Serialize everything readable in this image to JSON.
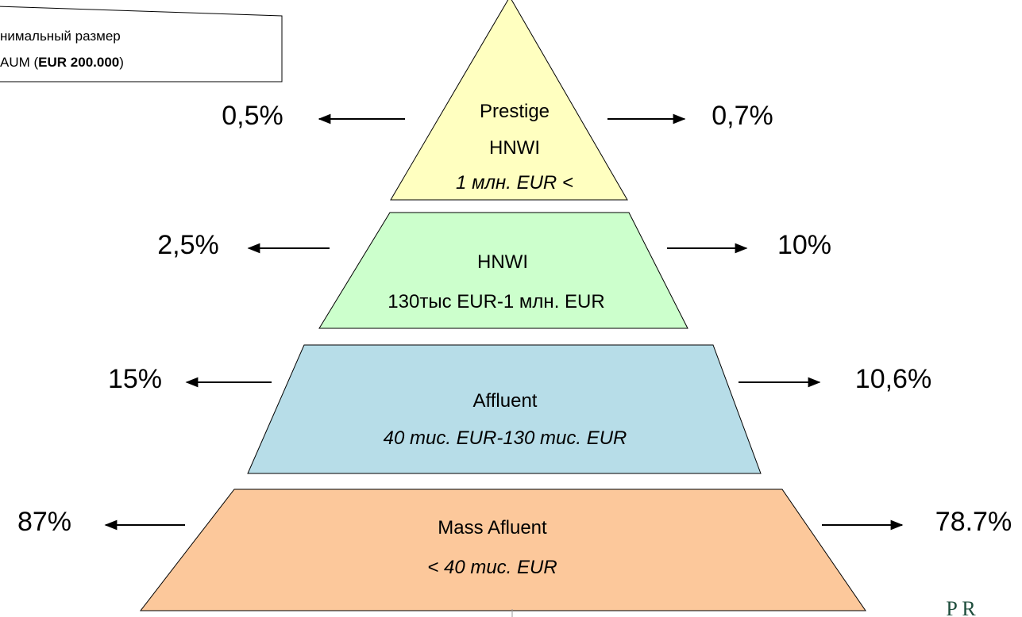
{
  "callout": {
    "line1": "нимальный размер",
    "line2_start": "AUM (",
    "line2_bold": "EUR 200.000",
    "line2_end": ")"
  },
  "levels": [
    {
      "lines": [
        "Prestige",
        "HNWI",
        "1 млн. EUR <"
      ],
      "left": "0,5%",
      "right": "0,7%"
    },
    {
      "lines": [
        "HNWI",
        "130тыс EUR-1 млн. EUR"
      ],
      "left": "2,5%",
      "right": "10%"
    },
    {
      "lines": [
        "Affluent",
        "40 тис. EUR-130 тис. EUR"
      ],
      "left": "15%",
      "right": "10,6%"
    },
    {
      "lines": [
        "Mass Afluent",
        "< 40 тис. EUR"
      ],
      "left": "87%",
      "right": "78.7%"
    }
  ],
  "logo": "P R"
}
